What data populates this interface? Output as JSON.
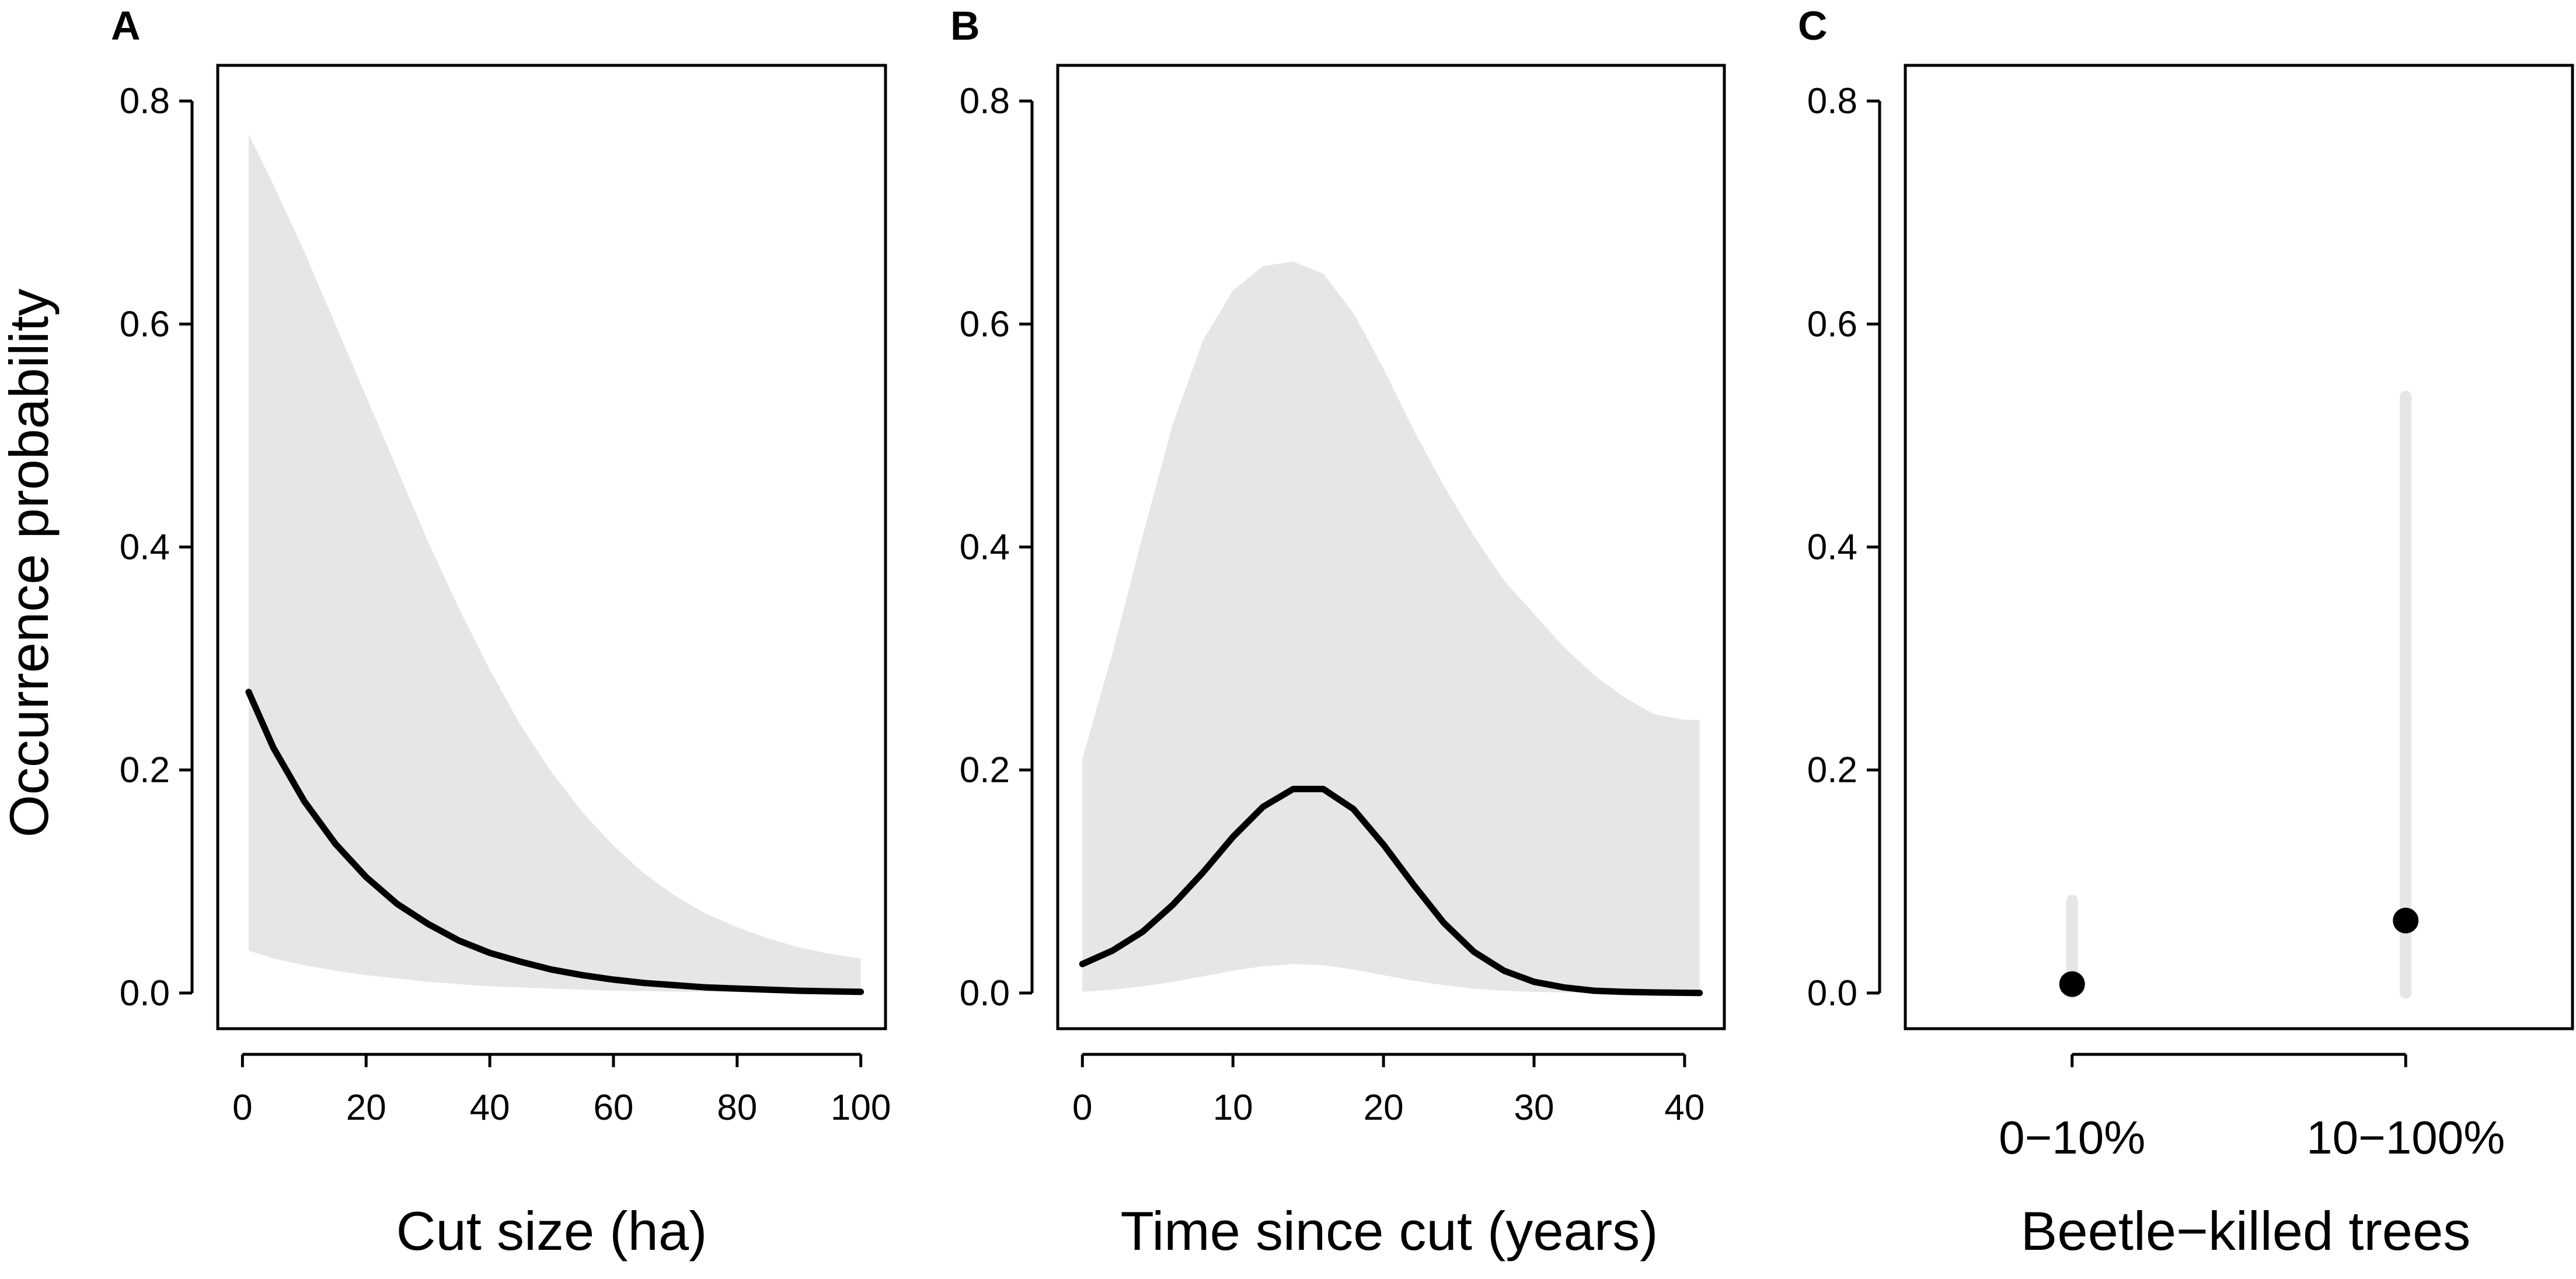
{
  "figure": {
    "ylabel": "Occurrence probability"
  },
  "colors": {
    "band": "#e6e6e6",
    "line": "#000000",
    "frame": "#000000",
    "background": "#ffffff"
  },
  "chart_data": [
    {
      "panel": "A",
      "type": "line",
      "title": "",
      "xlabel": "Cut size (ha)",
      "ylabel": "Occurrence probability",
      "xlim": [
        -4,
        104
      ],
      "ylim": [
        -0.032,
        0.832
      ],
      "xticks": [
        0,
        20,
        40,
        60,
        80,
        100
      ],
      "xtick_labels": [
        "0",
        "20",
        "40",
        "60",
        "80",
        "100"
      ],
      "yticks": [
        0.0,
        0.2,
        0.4,
        0.6,
        0.8
      ],
      "ytick_labels": [
        "0.0",
        "0.2",
        "0.4",
        "0.6",
        "0.8"
      ],
      "grid": false,
      "x": [
        1,
        5,
        10,
        15,
        20,
        25,
        30,
        35,
        40,
        45,
        50,
        55,
        60,
        65,
        70,
        75,
        80,
        85,
        90,
        95,
        100
      ],
      "mean": [
        0.27,
        0.22,
        0.172,
        0.134,
        0.104,
        0.08,
        0.062,
        0.047,
        0.036,
        0.028,
        0.021,
        0.016,
        0.012,
        0.009,
        0.007,
        0.005,
        0.004,
        0.003,
        0.002,
        0.0015,
        0.001
      ],
      "lower": [
        0.038,
        0.031,
        0.025,
        0.02,
        0.016,
        0.013,
        0.01,
        0.008,
        0.006,
        0.005,
        0.004,
        0.003,
        0.002,
        0.0017,
        0.0013,
        0.001,
        0.0008,
        0.0006,
        0.0005,
        0.0004,
        0.0003
      ],
      "upper": [
        0.77,
        0.725,
        0.665,
        0.6,
        0.535,
        0.47,
        0.405,
        0.345,
        0.29,
        0.24,
        0.198,
        0.162,
        0.132,
        0.107,
        0.087,
        0.071,
        0.059,
        0.049,
        0.041,
        0.035,
        0.031
      ]
    },
    {
      "panel": "B",
      "type": "line",
      "title": "",
      "xlabel": "Time since cut (years)",
      "ylabel": "",
      "xlim": [
        -1.64,
        42.64
      ],
      "ylim": [
        -0.032,
        0.832
      ],
      "xticks": [
        0,
        10,
        20,
        30,
        40
      ],
      "xtick_labels": [
        "0",
        "10",
        "20",
        "30",
        "40"
      ],
      "yticks": [
        0.0,
        0.2,
        0.4,
        0.6,
        0.8
      ],
      "ytick_labels": [
        "0.0",
        "0.2",
        "0.4",
        "0.6",
        "0.8"
      ],
      "grid": false,
      "x": [
        0,
        2,
        4,
        6,
        8,
        10,
        12,
        14,
        16,
        18,
        20,
        22,
        24,
        26,
        28,
        30,
        32,
        34,
        36,
        38,
        40,
        41
      ],
      "mean": [
        0.026,
        0.038,
        0.055,
        0.079,
        0.108,
        0.14,
        0.167,
        0.183,
        0.183,
        0.165,
        0.133,
        0.097,
        0.063,
        0.037,
        0.02,
        0.01,
        0.005,
        0.002,
        0.001,
        0.0005,
        0.0002,
        0.0001
      ],
      "lower": [
        0.001,
        0.003,
        0.006,
        0.01,
        0.015,
        0.02,
        0.024,
        0.026,
        0.025,
        0.021,
        0.016,
        0.011,
        0.007,
        0.004,
        0.002,
        0.001,
        0.0005,
        0.0002,
        0.0001,
        0.0001,
        0.0,
        0.0
      ],
      "upper": [
        0.21,
        0.305,
        0.41,
        0.51,
        0.585,
        0.63,
        0.652,
        0.656,
        0.645,
        0.61,
        0.56,
        0.505,
        0.455,
        0.41,
        0.37,
        0.34,
        0.31,
        0.285,
        0.265,
        0.25,
        0.245,
        0.245
      ]
    },
    {
      "panel": "C",
      "type": "scatter",
      "title": "",
      "xlabel": "Beetle−killed trees",
      "ylabel": "",
      "xlim": [
        0.5,
        2.5
      ],
      "ylim": [
        -0.032,
        0.832
      ],
      "categories": [
        "0−10%",
        "10−100%"
      ],
      "yticks": [
        0.0,
        0.2,
        0.4,
        0.6,
        0.8
      ],
      "ytick_labels": [
        "0.0",
        "0.2",
        "0.4",
        "0.6",
        "0.8"
      ],
      "grid": false,
      "values": [
        0.008,
        0.065
      ],
      "lower": [
        0.0,
        0.0
      ],
      "upper": [
        0.083,
        0.535
      ]
    }
  ]
}
